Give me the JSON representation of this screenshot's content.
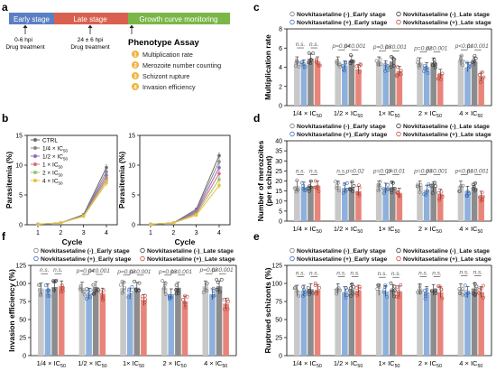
{
  "panels": {
    "a": {
      "letter": "a",
      "stages": [
        "Early stage",
        "Late stage",
        "Growth curve monitoring"
      ],
      "colors": {
        "early": "#5b7fc4",
        "late": "#d9604f",
        "growth": "#7ab648",
        "check": "#f0b43c"
      },
      "arrow1": {
        "line1": "0-6 hpi",
        "line2": "Drug treatment"
      },
      "arrow2": {
        "line1": "24 ± 6 hpi",
        "line2": "Drug treatment"
      },
      "assay_title": "Phenotype Assay",
      "assays": [
        {
          "num": "1",
          "label": "Multiplication rate"
        },
        {
          "num": "2",
          "label": "Merozoite number counting"
        },
        {
          "num": "3",
          "label": "Schizont rupture"
        },
        {
          "num": "4",
          "label": "Invasion efficiency"
        }
      ]
    },
    "b": {
      "letter": "b",
      "xlabel": "Cycle",
      "ylabel": "Parasitemia (%)",
      "legend": [
        {
          "label": "CTRL",
          "color": "#6a6a6a"
        },
        {
          "label": "1/4 × IC",
          "sub": "50",
          "color": "#8a8a8a"
        },
        {
          "label": "1/2 × IC",
          "sub": "50",
          "color": "#8d6cc4"
        },
        {
          "label": "1 × IC",
          "sub": "50",
          "color": "#d86c7c"
        },
        {
          "label": "2 × IC",
          "sub": "50",
          "color": "#9bc46a"
        },
        {
          "label": "4 × IC",
          "sub": "50",
          "color": "#e8c23c"
        }
      ],
      "chart_data": [
        {
          "type": "line",
          "x": [
            1,
            2,
            3,
            4
          ],
          "ylim": [
            0,
            15
          ],
          "yticks": [
            0,
            5,
            10,
            15
          ],
          "series": [
            {
              "name": "CTRL",
              "values": [
                0.1,
                0.3,
                1.7,
                9.6
              ]
            },
            {
              "name": "1/4 × IC50",
              "values": [
                0.1,
                0.3,
                1.6,
                8.9
              ]
            },
            {
              "name": "1/2 × IC50",
              "values": [
                0.1,
                0.3,
                1.6,
                8.3
              ]
            },
            {
              "name": "1 × IC50",
              "values": [
                0.1,
                0.3,
                1.5,
                7.8
              ]
            },
            {
              "name": "2 × IC50",
              "values": [
                0.1,
                0.3,
                1.5,
                7.4
              ]
            },
            {
              "name": "4 × IC50",
              "values": [
                0.1,
                0.3,
                1.4,
                7.0
              ]
            }
          ]
        },
        {
          "type": "line",
          "x": [
            1,
            2,
            3,
            4
          ],
          "ylim": [
            0,
            15
          ],
          "yticks": [
            0,
            5,
            10,
            15
          ],
          "series": [
            {
              "name": "CTRL",
              "values": [
                0.1,
                0.3,
                2.6,
                11.6
              ]
            },
            {
              "name": "1/4 × IC50",
              "values": [
                0.1,
                0.3,
                2.4,
                10.6
              ]
            },
            {
              "name": "1/2 × IC50",
              "values": [
                0.1,
                0.3,
                2.2,
                9.6
              ]
            },
            {
              "name": "1 × IC50",
              "values": [
                0.1,
                0.3,
                2.0,
                8.6
              ]
            },
            {
              "name": "2 × IC50",
              "values": [
                0.1,
                0.3,
                1.8,
                7.6
              ]
            },
            {
              "name": "4 × IC50",
              "values": [
                0.1,
                0.3,
                1.6,
                6.6
              ]
            }
          ]
        }
      ]
    },
    "c": {
      "letter": "c",
      "ylabel": "Multiplication rate",
      "chart_data": {
        "type": "bar",
        "ylim": [
          0,
          8
        ],
        "yticks": [
          0,
          2,
          4,
          6,
          8
        ],
        "groups": [
          "1/4 × IC50",
          "1/2 × IC50",
          "1 × IC50",
          "2 × IC50",
          "4 × IC50"
        ],
        "values": [
          [
            4.6,
            4.3,
            4.9,
            4.6
          ],
          [
            4.6,
            4.2,
            4.7,
            3.8
          ],
          [
            4.6,
            4.2,
            4.6,
            3.6
          ],
          [
            4.5,
            4.0,
            4.5,
            3.3
          ],
          [
            4.7,
            4.0,
            4.6,
            3.0
          ]
        ],
        "annotations": [
          {
            "group": 0,
            "left": "n.s.",
            "right": "n.s."
          },
          {
            "group": 1,
            "left": "p=0.04",
            "right": "p<0.001"
          },
          {
            "group": 2,
            "left": "p=0.03",
            "right": "p<0.001"
          },
          {
            "group": 3,
            "left": "p=0.02",
            "right": "p<0.001"
          },
          {
            "group": 4,
            "left": "p<0.01",
            "right": "p<0.001"
          }
        ]
      }
    },
    "d": {
      "letter": "d",
      "ylabel": "Number of merozoites",
      "ylabel2": "(per schizont)",
      "chart_data": {
        "type": "bar",
        "ylim": [
          0,
          40
        ],
        "yticks": [
          0,
          5,
          10,
          15,
          20,
          25,
          30,
          35,
          40
        ],
        "groups": [
          "1/4 × IC50",
          "1/2 × IC50",
          "1 × IC50",
          "2 × IC50",
          "4 × IC50"
        ],
        "values": [
          [
            17.5,
            17.0,
            17.5,
            17.5
          ],
          [
            17.5,
            16.5,
            17.0,
            15.0
          ],
          [
            17.5,
            16.5,
            17.0,
            14.0
          ],
          [
            17.5,
            15.5,
            17.0,
            13.5
          ],
          [
            17.5,
            15.0,
            16.5,
            12.5
          ]
        ],
        "annotations": [
          {
            "group": 0,
            "left": "n.s.",
            "right": "n.s."
          },
          {
            "group": 1,
            "left": "n.s.",
            "right": "p=0.02"
          },
          {
            "group": 2,
            "left": "p=0.03",
            "right": "p<0.01"
          },
          {
            "group": 3,
            "left": "p=0.03",
            "right": "p<0.001"
          },
          {
            "group": 4,
            "left": "p<0.01",
            "right": "p<0.001"
          }
        ]
      }
    },
    "f": {
      "letter": "f",
      "ylabel": "Invasion efficiency (%)",
      "chart_data": {
        "type": "bar",
        "ylim": [
          0,
          125
        ],
        "yticks": [
          0,
          25,
          50,
          75,
          100,
          125
        ],
        "groups": [
          "1/4 × IC50",
          "1/2 × IC50",
          "1 × IC50",
          "2 × IC50",
          "4 × IC50"
        ],
        "values": [
          [
            93,
            92,
            95,
            96
          ],
          [
            94,
            86,
            95,
            86
          ],
          [
            94,
            86,
            94,
            77
          ],
          [
            94,
            85,
            94,
            75
          ],
          [
            96,
            85,
            96,
            72
          ]
        ],
        "annotations": [
          {
            "group": 0,
            "left": "n.s.",
            "right": "n.s."
          },
          {
            "group": 1,
            "left": "p=0.04",
            "right": "p<0.001"
          },
          {
            "group": 2,
            "left": "p=0.02",
            "right": "p<0.001"
          },
          {
            "group": 3,
            "left": "p=0.03",
            "right": "p<0.001"
          },
          {
            "group": 4,
            "left": "p=0.02",
            "right": "p<0.001"
          }
        ]
      }
    },
    "e": {
      "letter": "e",
      "ylabel": "Ruptrued schizonts (%)",
      "chart_data": {
        "type": "bar",
        "ylim": [
          0,
          125
        ],
        "yticks": [
          0,
          25,
          50,
          75,
          100,
          125
        ],
        "groups": [
          "1/4 × IC50",
          "1/2 × IC50",
          "1 × IC50",
          "2 × IC50",
          "4 × IC50"
        ],
        "values": [
          [
            90,
            90,
            92,
            91
          ],
          [
            92,
            88,
            92,
            90
          ],
          [
            91,
            89,
            91,
            89
          ],
          [
            92,
            88,
            91,
            88
          ],
          [
            92,
            88,
            93,
            88
          ]
        ],
        "annotations": [
          {
            "group": 0,
            "left": "n.s.",
            "right": "n.s."
          },
          {
            "group": 1,
            "left": "n.s.",
            "right": "n.s."
          },
          {
            "group": 2,
            "left": "n.s.",
            "right": "n.s."
          },
          {
            "group": 3,
            "left": "n.s.",
            "right": "n.s."
          },
          {
            "group": 4,
            "left": "n.s.",
            "right": "n.s."
          }
        ]
      }
    }
  },
  "bar_legend": [
    {
      "label": "Novkitasetaline (-)_Early stage",
      "color": "#bdbdbd"
    },
    {
      "label": "Novkitasetaline (-)_Late stage",
      "color": "#8c8c8c"
    },
    {
      "label": "Novkitasetaline (+)_Early stage",
      "color": "#8eb0dc"
    },
    {
      "label": "Novkitasetaline (+)_Late stage",
      "color": "#e8857a"
    }
  ],
  "group_labels": [
    {
      "main": "1/4 × IC",
      "sub": "50"
    },
    {
      "main": "1/2 × IC",
      "sub": "50"
    },
    {
      "main": "1× IC",
      "sub": "50"
    },
    {
      "main": "2 × IC",
      "sub": "50"
    },
    {
      "main": "4 × IC",
      "sub": "50"
    }
  ],
  "bar_colors": [
    "#c8c8c8",
    "#8eb0dc",
    "#8c8c8c",
    "#e8857a"
  ],
  "dot_colors": [
    "#7a7a7a",
    "#3c6fb8",
    "#3a3a3a",
    "#c8483c"
  ]
}
